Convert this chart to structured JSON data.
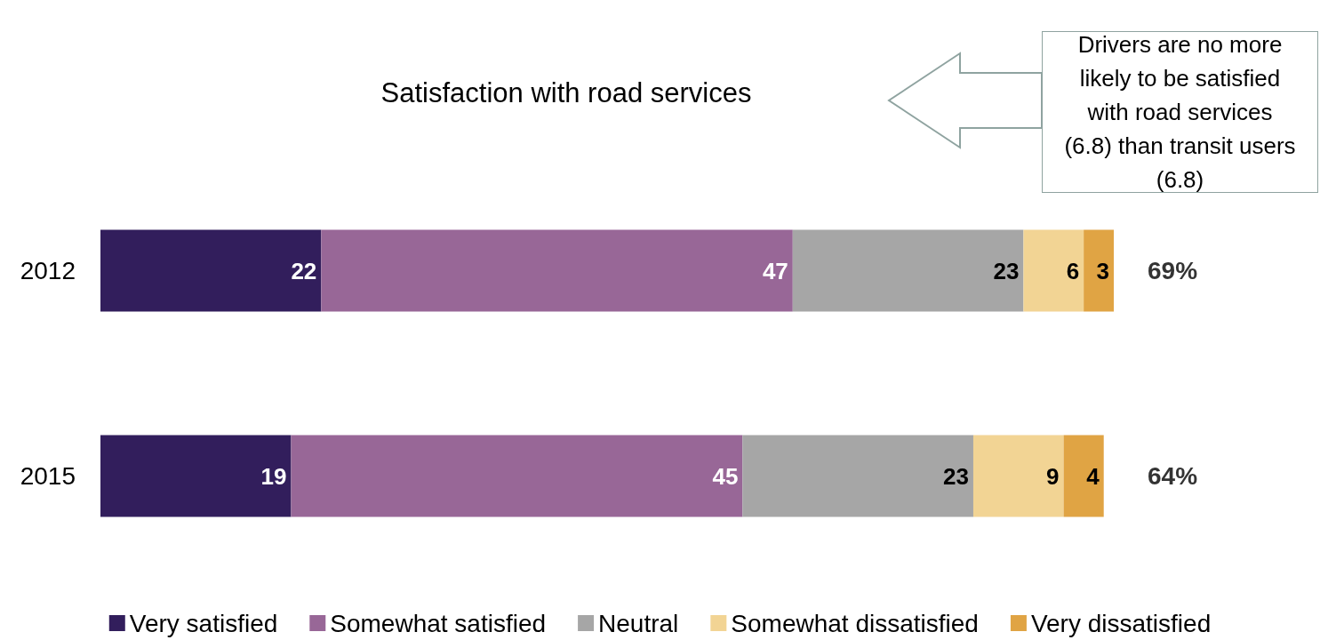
{
  "chart_data": {
    "type": "bar",
    "orientation": "horizontal",
    "stacked": true,
    "title": "Satisfaction with road services",
    "categories": [
      "2012",
      "2015"
    ],
    "series": [
      {
        "name": "Very satisfied",
        "color": "#321e5c",
        "values": [
          22,
          19
        ]
      },
      {
        "name": "Somewhat satisfied",
        "color": "#986797",
        "values": [
          47,
          45
        ]
      },
      {
        "name": "Neutral",
        "color": "#a6a6a6",
        "values": [
          23,
          23
        ]
      },
      {
        "name": "Somewhat dissatisfied",
        "color": "#f2d494",
        "values": [
          6,
          9
        ]
      },
      {
        "name": "Very dissatisfied",
        "color": "#e0a444",
        "values": [
          3,
          4
        ]
      }
    ],
    "data_labels": true,
    "legend": "bottom",
    "annotations": [
      "69%",
      "64%",
      "Drivers are no more likely to be satisfied with road services (6.8) than transit users (6.8)"
    ]
  }
}
